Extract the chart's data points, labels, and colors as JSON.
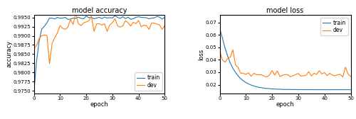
{
  "title_acc": "model accuracy",
  "title_loss": "model loss",
  "xlabel": "epoch",
  "ylabel_acc": "accuracy",
  "ylabel_loss": "loss",
  "epochs": 50,
  "train_color": "#1f77b4",
  "dev_color": "#ff7f0e",
  "train_label": "train",
  "dev_label": "dev",
  "acc_ylim": [
    0.9743,
    0.9957
  ],
  "loss_ylim": [
    0.013,
    0.076
  ],
  "acc_yticks": [
    0.975,
    0.9775,
    0.98,
    0.9825,
    0.985,
    0.9875,
    0.99,
    0.9925,
    0.995
  ],
  "loss_yticks": [
    0.02,
    0.03,
    0.04,
    0.05,
    0.06,
    0.07
  ],
  "xticks": [
    0,
    10,
    20,
    30,
    40,
    50
  ],
  "title_fontsize": 7,
  "label_fontsize": 6,
  "tick_fontsize": 5,
  "legend_fontsize": 5.5,
  "linewidth": 0.8
}
